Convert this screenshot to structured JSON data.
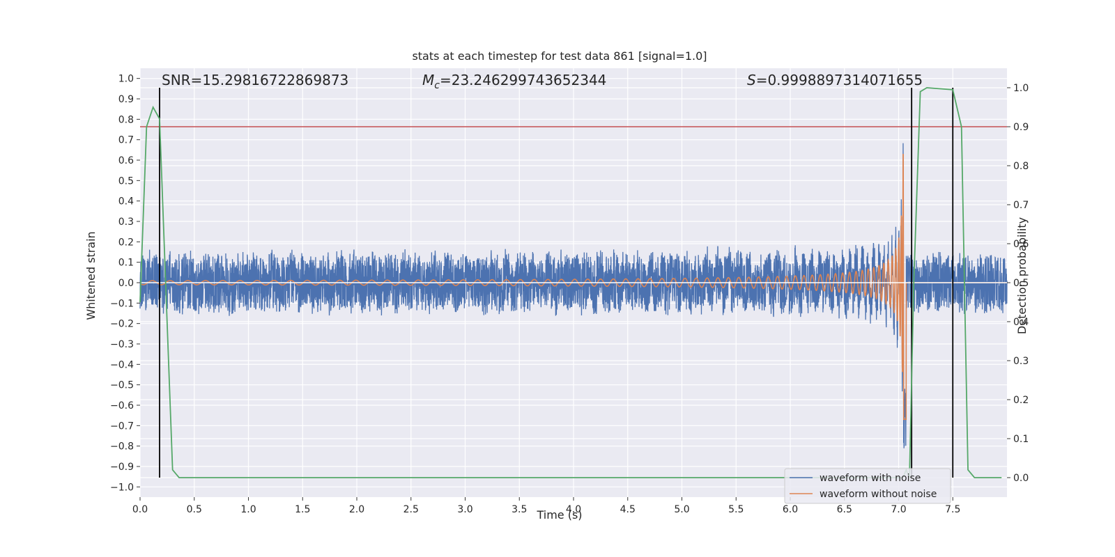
{
  "chart_data": {
    "type": "line",
    "title": "stats at each timestep for test data 861 [signal=1.0]",
    "xlabel": "Time (s)",
    "ylabel": "Whitened strain",
    "ylabel_right": "Detection probability",
    "xlim": [
      0.0,
      8.0
    ],
    "ylim": [
      -1.05,
      1.05
    ],
    "ylim_right": [
      -0.05,
      1.05
    ],
    "x_ticks": [
      "0.0",
      "0.5",
      "1.0",
      "1.5",
      "2.0",
      "2.5",
      "3.0",
      "3.5",
      "4.0",
      "4.5",
      "5.0",
      "5.5",
      "6.0",
      "6.5",
      "7.0",
      "7.5"
    ],
    "y_ticks": [
      "1.0",
      "0.9",
      "0.8",
      "0.7",
      "0.6",
      "0.5",
      "0.4",
      "0.3",
      "0.2",
      "0.1",
      "0.0",
      "−0.1",
      "−0.2",
      "−0.3",
      "−0.4",
      "−0.5",
      "−0.6",
      "−0.7",
      "−0.8",
      "−0.9",
      "−1.0"
    ],
    "y_ticks_right": [
      "1.0",
      "0.9",
      "0.8",
      "0.7",
      "0.6",
      "0.5",
      "0.4",
      "0.3",
      "0.2",
      "0.1",
      "0.0"
    ],
    "grid": true,
    "legend_position": "lower-right",
    "annotations": {
      "snr": "SNR=15.29816722869873",
      "mc_symbol": "M",
      "mc_sub": "c",
      "mc_value": "=23.246299743652344",
      "s_symbol": "S",
      "s_value": "=0.9998897314071655"
    },
    "threshold": {
      "axis": "right",
      "value": 0.9
    },
    "vertical_lines": [
      0.18,
      7.12,
      7.5
    ],
    "series": [
      {
        "name": "waveform with noise",
        "color": "#4c72b0",
        "axis": "left",
        "noise_amplitude": 0.15,
        "chirp_peak_time": 7.05,
        "chirp_peak_amplitude": 1.0,
        "x_range": [
          0.0,
          8.0
        ]
      },
      {
        "name": "waveform without noise",
        "color": "#dd8452",
        "axis": "left",
        "initial_amplitude": 0.01,
        "start_frequency_hz": 6,
        "merger_time": 7.05,
        "peak_amplitude": 1.0,
        "x_range": [
          0.0,
          8.0
        ]
      },
      {
        "name": "",
        "color": "#55a868",
        "axis": "right",
        "x": [
          0.0,
          0.06,
          0.12,
          0.18,
          0.3,
          0.36,
          0.4,
          7.04,
          7.07,
          7.1,
          7.14,
          7.2,
          7.26,
          7.5,
          7.58,
          7.64,
          7.7,
          7.95
        ],
        "y": [
          0.45,
          0.9,
          0.95,
          0.92,
          0.02,
          0.0,
          0.0,
          0.0,
          0.02,
          0.0,
          0.5,
          0.99,
          1.0,
          0.995,
          0.9,
          0.02,
          0.0,
          0.0
        ]
      }
    ],
    "colors": {
      "background": "#eaeaf2",
      "grid": "#ffffff",
      "threshold": "#c44e52",
      "vertical_line": "#000000",
      "zero_line_right": "#ffffff"
    }
  }
}
